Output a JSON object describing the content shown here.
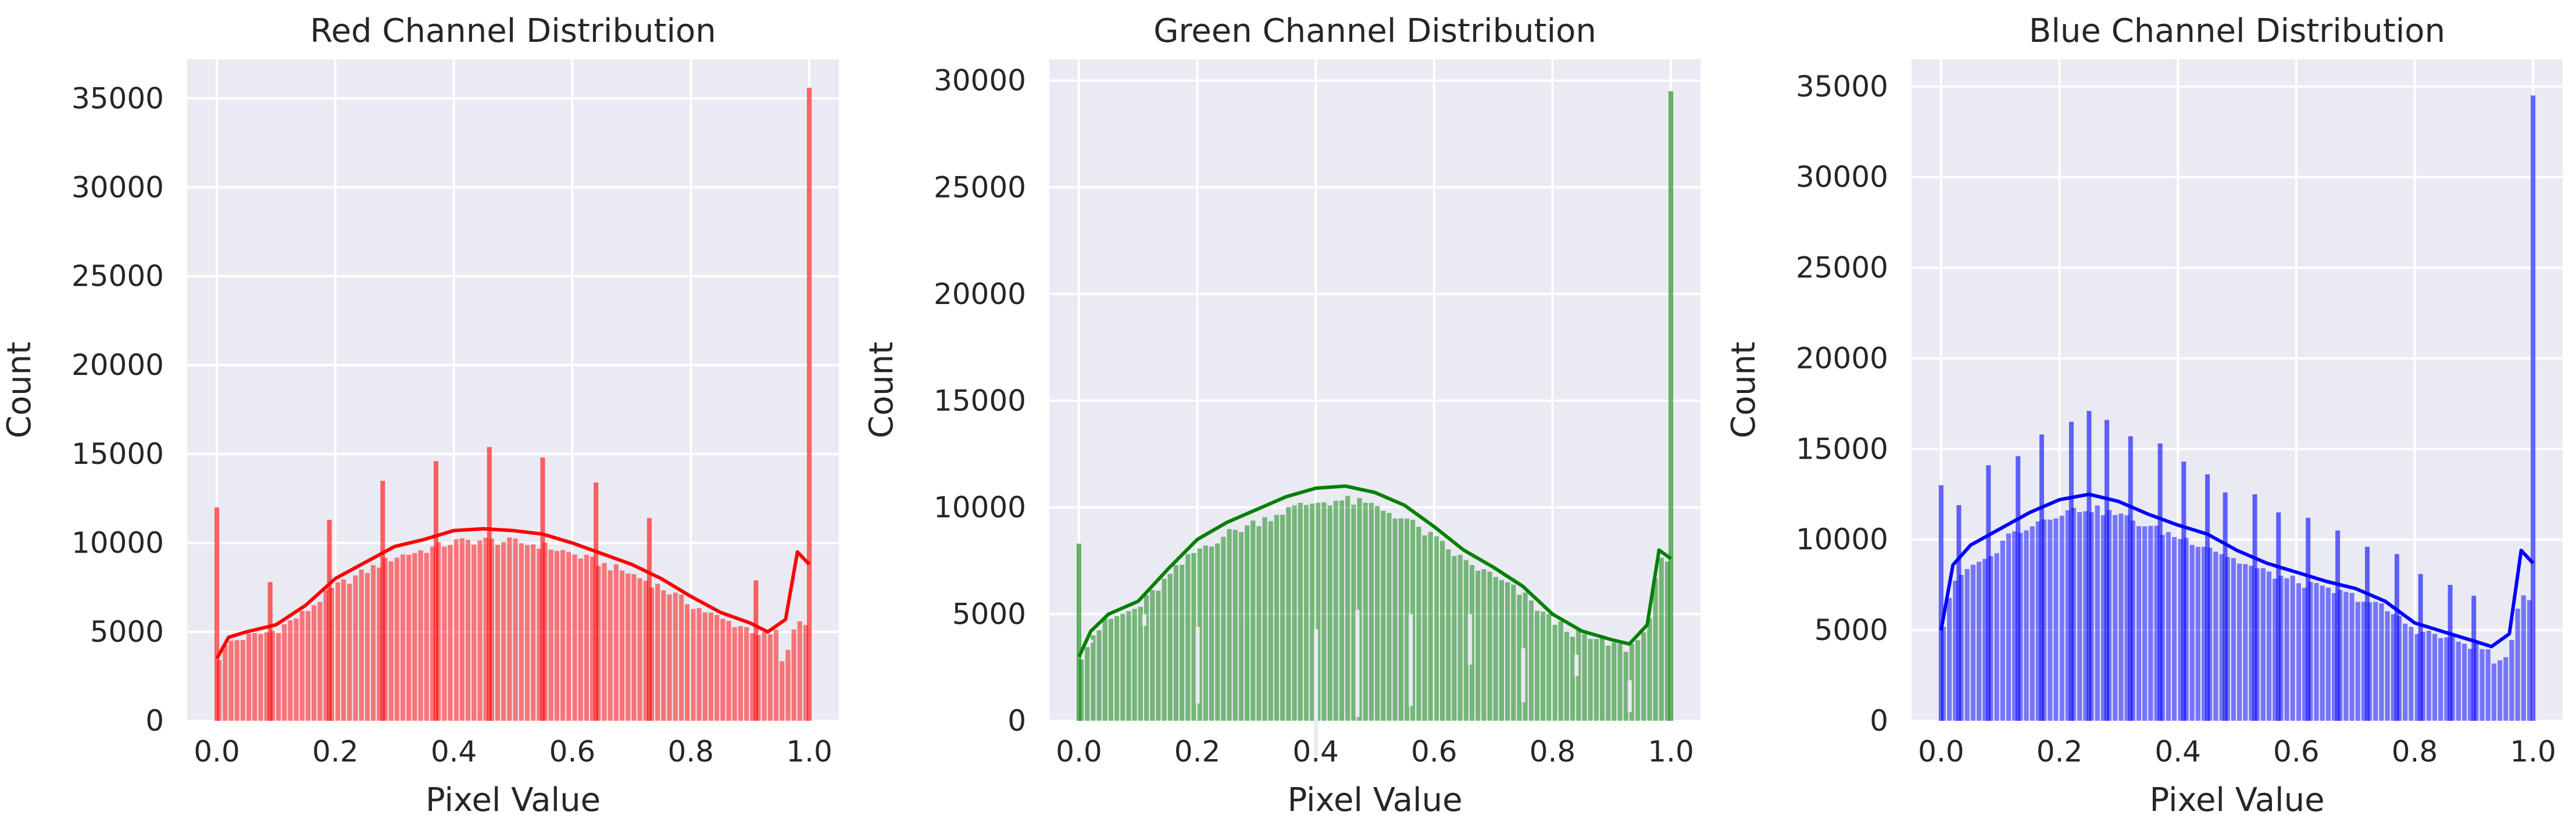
{
  "chart_data": [
    {
      "type": "bar",
      "title": "Red Channel Distribution",
      "xlabel": "Pixel Value",
      "ylabel": "Count",
      "xlim": [
        -0.05,
        1.05
      ],
      "ylim": [
        0,
        37200
      ],
      "xticks": [
        "0.0",
        "0.2",
        "0.4",
        "0.6",
        "0.8",
        "1.0"
      ],
      "yticks": [
        "0",
        "5000",
        "10000",
        "15000",
        "20000",
        "25000",
        "30000",
        "35000"
      ],
      "grid": true,
      "color": "#ff0000",
      "kde": {
        "x": [
          0.0,
          0.02,
          0.05,
          0.1,
          0.15,
          0.2,
          0.25,
          0.3,
          0.35,
          0.4,
          0.45,
          0.5,
          0.55,
          0.6,
          0.65,
          0.7,
          0.75,
          0.8,
          0.85,
          0.9,
          0.93,
          0.96,
          0.98,
          1.0
        ],
        "y": [
          3500,
          4700,
          5000,
          5400,
          6500,
          8000,
          8900,
          9800,
          10200,
          10700,
          10800,
          10700,
          10500,
          10000,
          9400,
          8800,
          8000,
          7000,
          6100,
          5500,
          5000,
          5700,
          9500,
          8800
        ]
      },
      "spikes": [
        {
          "x": 0.0,
          "y": 12000
        },
        {
          "x": 0.09,
          "y": 7800
        },
        {
          "x": 0.19,
          "y": 11300
        },
        {
          "x": 0.28,
          "y": 13500
        },
        {
          "x": 0.37,
          "y": 14600
        },
        {
          "x": 0.46,
          "y": 15400
        },
        {
          "x": 0.55,
          "y": 14800
        },
        {
          "x": 0.64,
          "y": 13400
        },
        {
          "x": 0.73,
          "y": 11400
        },
        {
          "x": 0.91,
          "y": 7900
        },
        {
          "x": 1.0,
          "y": 35600
        }
      ]
    },
    {
      "type": "bar",
      "title": "Green Channel Distribution",
      "xlabel": "Pixel Value",
      "ylabel": "Count",
      "xlim": [
        -0.05,
        1.05
      ],
      "ylim": [
        0,
        31000
      ],
      "xticks": [
        "0.0",
        "0.2",
        "0.4",
        "0.6",
        "0.8",
        "1.0"
      ],
      "yticks": [
        "0",
        "5000",
        "10000",
        "15000",
        "20000",
        "25000",
        "30000"
      ],
      "grid": true,
      "color": "#008000",
      "kde": {
        "x": [
          0.0,
          0.02,
          0.05,
          0.1,
          0.15,
          0.2,
          0.25,
          0.3,
          0.35,
          0.4,
          0.45,
          0.5,
          0.55,
          0.6,
          0.65,
          0.7,
          0.75,
          0.8,
          0.85,
          0.9,
          0.93,
          0.96,
          0.98,
          1.0
        ],
        "y": [
          3000,
          4200,
          5000,
          5600,
          7100,
          8500,
          9300,
          9900,
          10500,
          10900,
          11000,
          10700,
          10100,
          9100,
          8000,
          7200,
          6300,
          5000,
          4200,
          3800,
          3600,
          4500,
          8000,
          7600
        ]
      },
      "spikes": [
        {
          "x": 0.0,
          "y": 8300
        },
        {
          "x": 1.0,
          "y": 29500
        }
      ],
      "dips": [
        {
          "x": 0.02,
          "y": 3800
        },
        {
          "x": 0.11,
          "y": 5000
        },
        {
          "x": 0.2,
          "y": 4400
        },
        {
          "x": 0.4,
          "y": 4300
        },
        {
          "x": 0.47,
          "y": 5200
        },
        {
          "x": 0.56,
          "y": 5000
        },
        {
          "x": 0.66,
          "y": 5000
        },
        {
          "x": 0.75,
          "y": 3400
        },
        {
          "x": 0.84,
          "y": 3100
        },
        {
          "x": 0.93,
          "y": 1900
        }
      ]
    },
    {
      "type": "bar",
      "title": "Blue Channel Distribution",
      "xlabel": "Pixel Value",
      "ylabel": "Count",
      "xlim": [
        -0.05,
        1.05
      ],
      "ylim": [
        0,
        36500
      ],
      "xticks": [
        "0.0",
        "0.2",
        "0.4",
        "0.6",
        "0.8",
        "1.0"
      ],
      "yticks": [
        "0",
        "5000",
        "10000",
        "15000",
        "20000",
        "25000",
        "30000",
        "35000"
      ],
      "grid": true,
      "color": "#0000ff",
      "kde": {
        "x": [
          0.0,
          0.02,
          0.05,
          0.1,
          0.15,
          0.2,
          0.25,
          0.3,
          0.35,
          0.4,
          0.45,
          0.5,
          0.55,
          0.6,
          0.65,
          0.7,
          0.75,
          0.8,
          0.85,
          0.9,
          0.93,
          0.96,
          0.98,
          1.0
        ],
        "y": [
          5000,
          8600,
          9700,
          10600,
          11500,
          12200,
          12500,
          12100,
          11400,
          10800,
          10300,
          9400,
          8700,
          8200,
          7700,
          7300,
          6600,
          5400,
          4900,
          4400,
          4100,
          4800,
          9400,
          8700
        ]
      },
      "spikes": [
        {
          "x": 0.0,
          "y": 13000
        },
        {
          "x": 0.03,
          "y": 11900
        },
        {
          "x": 0.08,
          "y": 14100
        },
        {
          "x": 0.13,
          "y": 14600
        },
        {
          "x": 0.17,
          "y": 15800
        },
        {
          "x": 0.22,
          "y": 16500
        },
        {
          "x": 0.25,
          "y": 17100
        },
        {
          "x": 0.28,
          "y": 16600
        },
        {
          "x": 0.32,
          "y": 15700
        },
        {
          "x": 0.37,
          "y": 15300
        },
        {
          "x": 0.41,
          "y": 14300
        },
        {
          "x": 0.45,
          "y": 13600
        },
        {
          "x": 0.48,
          "y": 12600
        },
        {
          "x": 0.53,
          "y": 12500
        },
        {
          "x": 0.57,
          "y": 11500
        },
        {
          "x": 0.62,
          "y": 11200
        },
        {
          "x": 0.67,
          "y": 10500
        },
        {
          "x": 0.72,
          "y": 9600
        },
        {
          "x": 0.77,
          "y": 9200
        },
        {
          "x": 0.81,
          "y": 8100
        },
        {
          "x": 0.86,
          "y": 7500
        },
        {
          "x": 0.9,
          "y": 6900
        },
        {
          "x": 1.0,
          "y": 34500
        }
      ]
    }
  ]
}
